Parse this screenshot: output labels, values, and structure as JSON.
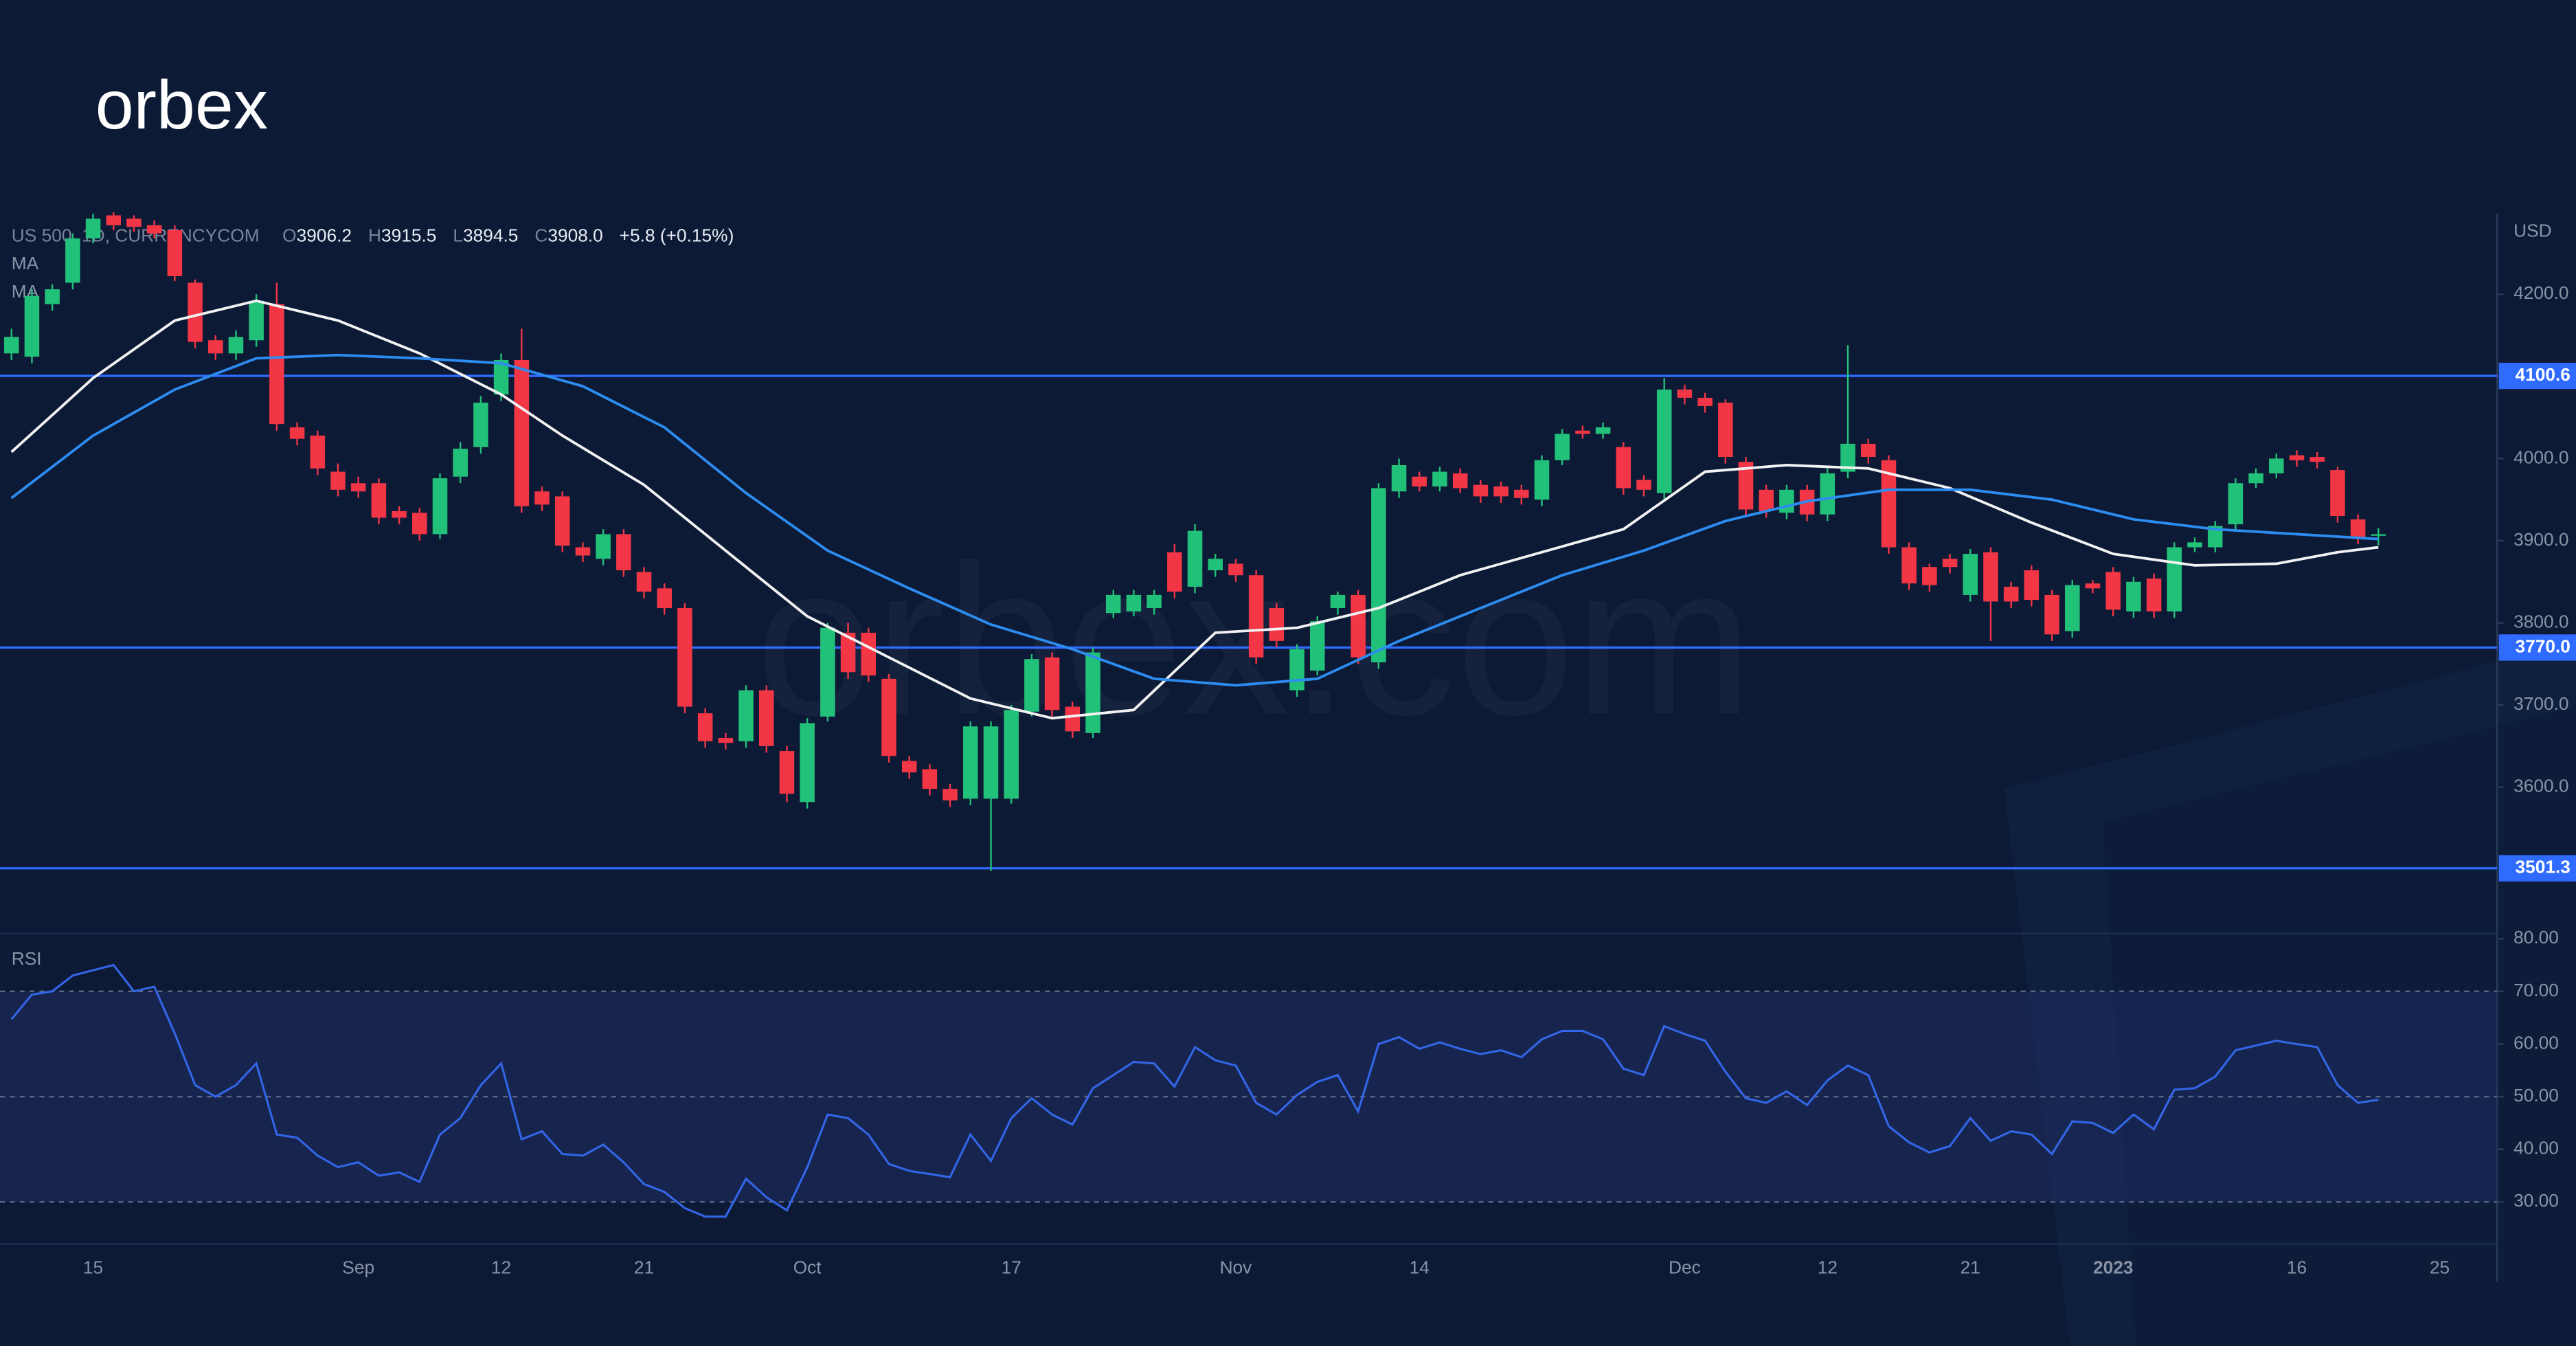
{
  "logo": "orbex",
  "watermark": "orbex.com",
  "chart_data": [
    {
      "type": "candlestick",
      "title": "US 500, 1D, CURRENCYCOM",
      "quote": [
        {
          "key": "O",
          "value": "3906.2"
        },
        {
          "key": "H",
          "value": "3915.5"
        },
        {
          "key": "L",
          "value": "3894.5"
        },
        {
          "key": "C",
          "value": "3908.0"
        }
      ],
      "change": "+5.8 (+0.15%)",
      "unit": "USD",
      "up_color": "#22c17a",
      "down_color": "#f23645",
      "ylim": [
        3422,
        4298
      ],
      "yticks": [
        {
          "value": 4200,
          "label": "4200.0"
        },
        {
          "value": 4100,
          "label": "4100.0"
        },
        {
          "value": 4000,
          "label": "4000.0"
        },
        {
          "value": 3900,
          "label": "3900.0"
        },
        {
          "value": 3800,
          "label": "3800.0"
        },
        {
          "value": 3700,
          "label": "3700.0"
        },
        {
          "value": 3600,
          "label": "3600.0"
        }
      ],
      "grid": false,
      "levels": [
        4100.6,
        {
          "value": 3770,
          "label": "3770.0"
        },
        3501.3
      ],
      "level_color": "#2f6bff",
      "open": [
        4128,
        4124,
        4188,
        4214,
        4268,
        4296,
        4292,
        4284,
        4278,
        4214,
        4144,
        4128,
        4144,
        4188,
        4038,
        4028,
        3984,
        3970,
        3970,
        3936,
        3934,
        3908,
        3978,
        4014,
        4078,
        4120,
        3960,
        3954,
        3892,
        3878,
        3908,
        3862,
        3842,
        3818,
        3690,
        3660,
        3656,
        3718,
        3644,
        3582,
        3686,
        3788,
        3788,
        3732,
        3632,
        3622,
        3598,
        3586,
        3586,
        3586,
        3692,
        3758,
        3698,
        3666,
        3812,
        3814,
        3818,
        3886,
        3844,
        3864,
        3872,
        3858,
        3818,
        3718,
        3742,
        3818,
        3834,
        3752,
        3960,
        3978,
        3966,
        3982,
        3968,
        3966,
        3962,
        3950,
        3998,
        4034,
        4030,
        4014,
        3974,
        3958,
        4084,
        4074,
        4068,
        3996,
        3962,
        3934,
        3962,
        3932,
        3984,
        4018,
        3998,
        3892,
        3868,
        3878,
        3834,
        3886,
        3844,
        3864,
        3834,
        3790,
        3848,
        3862,
        3814,
        3854,
        3814,
        3892,
        3892,
        3920,
        3970,
        3982,
        4004,
        4002,
        3986,
        3926,
        3906.2,
        null,
        null,
        null
      ],
      "high": [
        4158,
        4206,
        4212,
        4274,
        4298,
        4300,
        4296,
        4290,
        4284,
        4218,
        4150,
        4156,
        4200,
        4214,
        4044,
        4034,
        3994,
        3978,
        3976,
        3942,
        3940,
        3982,
        4020,
        4076,
        4128,
        4158,
        3966,
        3960,
        3898,
        3914,
        3914,
        3868,
        3848,
        3824,
        3696,
        3666,
        3724,
        3724,
        3650,
        3684,
        3800,
        3800,
        3794,
        3738,
        3638,
        3628,
        3604,
        3680,
        3680,
        3700,
        3762,
        3764,
        3704,
        3770,
        3840,
        3840,
        3840,
        3896,
        3920,
        3884,
        3878,
        3864,
        3824,
        3774,
        3808,
        3838,
        3840,
        3970,
        4000,
        3984,
        3990,
        3988,
        3974,
        3972,
        3968,
        4004,
        4036,
        4040,
        4044,
        4020,
        3980,
        4098,
        4090,
        4080,
        4072,
        4002,
        3968,
        3968,
        3968,
        3988,
        4138,
        4024,
        4004,
        3898,
        3872,
        3884,
        3890,
        3892,
        3850,
        3870,
        3840,
        3852,
        3852,
        3868,
        3856,
        3860,
        3898,
        3904,
        3924,
        3976,
        3988,
        4006,
        4010,
        4008,
        3990,
        3932,
        3915.5,
        null,
        null,
        null
      ],
      "low": [
        4120,
        4116,
        4180,
        4206,
        4262,
        4278,
        4276,
        4268,
        4216,
        4134,
        4120,
        4120,
        4136,
        4034,
        4016,
        3980,
        3954,
        3952,
        3920,
        3920,
        3900,
        3902,
        3970,
        4006,
        4070,
        3934,
        3936,
        3886,
        3874,
        3870,
        3856,
        3830,
        3810,
        3690,
        3648,
        3646,
        3648,
        3642,
        3582,
        3574,
        3680,
        3732,
        3728,
        3630,
        3610,
        3590,
        3576,
        3578,
        3498,
        3580,
        3686,
        3686,
        3660,
        3660,
        3806,
        3808,
        3810,
        3830,
        3836,
        3856,
        3850,
        3750,
        3770,
        3710,
        3736,
        3810,
        3750,
        3744,
        3952,
        3960,
        3960,
        3958,
        3946,
        3946,
        3944,
        3942,
        3992,
        4024,
        4024,
        3956,
        3954,
        3950,
        4066,
        4056,
        3994,
        3930,
        3928,
        3926,
        3924,
        3924,
        3976,
        3994,
        3884,
        3840,
        3838,
        3860,
        3826,
        3778,
        3818,
        3820,
        3778,
        3782,
        3836,
        3808,
        3806,
        3806,
        3806,
        3886,
        3886,
        3912,
        3964,
        3976,
        3990,
        3988,
        3922,
        3896,
        3894.5,
        null,
        null,
        null
      ],
      "close": [
        4148,
        4198,
        4206,
        4268,
        4292,
        4284,
        4282,
        4274,
        4222,
        4142,
        4128,
        4148,
        4192,
        4042,
        4024,
        3988,
        3962,
        3960,
        3928,
        3928,
        3908,
        3976,
        4012,
        4068,
        4120,
        3942,
        3944,
        3894,
        3882,
        3908,
        3864,
        3838,
        3818,
        3698,
        3656,
        3654,
        3718,
        3650,
        3592,
        3678,
        3794,
        3740,
        3736,
        3638,
        3618,
        3598,
        3584,
        3674,
        3674,
        3694,
        3756,
        3694,
        3668,
        3764,
        3834,
        3834,
        3834,
        3838,
        3912,
        3878,
        3858,
        3758,
        3778,
        3768,
        3802,
        3834,
        3758,
        3964,
        3992,
        3966,
        3984,
        3964,
        3954,
        3954,
        3952,
        3998,
        4030,
        4030,
        4038,
        3964,
        3962,
        4084,
        4074,
        4064,
        4002,
        3938,
        3936,
        3962,
        3932,
        3982,
        4018,
        4002,
        3892,
        3848,
        3846,
        3868,
        3884,
        3826,
        3826,
        3828,
        3786,
        3846,
        3842,
        3816,
        3850,
        3814,
        3892,
        3898,
        3918,
        3970,
        3982,
        4000,
        3998,
        3996,
        3930,
        3904,
        3908.0,
        null,
        null,
        null
      ],
      "series": [
        {
          "name": "MA",
          "color": "#f2f2f2",
          "x": [
            0,
            4,
            8,
            12,
            16,
            20,
            24,
            27,
            31,
            35,
            39,
            43,
            47,
            51,
            55,
            59,
            63,
            67,
            71,
            75,
            79,
            83,
            87,
            91,
            95,
            99,
            103,
            107,
            111,
            114,
            116
          ],
          "values": [
            4008,
            4098,
            4168,
            4192,
            4168,
            4128,
            4078,
            4028,
            3968,
            3888,
            3808,
            3758,
            3708,
            3684,
            3694,
            3788,
            3794,
            3818,
            3858,
            3886,
            3914,
            3984,
            3992,
            3988,
            3964,
            3922,
            3884,
            3870,
            3872,
            3886,
            3892
          ]
        },
        {
          "name": "MA",
          "color": "#2d8cf0",
          "x": [
            0,
            4,
            8,
            12,
            16,
            20,
            24,
            28,
            32,
            36,
            40,
            44,
            48,
            52,
            56,
            60,
            64,
            68,
            72,
            76,
            80,
            84,
            88,
            92,
            96,
            100,
            104,
            108,
            112,
            116
          ],
          "values": [
            3952,
            4028,
            4084,
            4122,
            4126,
            4122,
            4116,
            4088,
            4038,
            3958,
            3888,
            3842,
            3798,
            3768,
            3732,
            3724,
            3732,
            3778,
            3818,
            3858,
            3888,
            3924,
            3948,
            3962,
            3962,
            3950,
            3926,
            3914,
            3908,
            3902
          ]
        }
      ]
    },
    {
      "type": "line",
      "title": "RSI",
      "color": "#3366e6",
      "band_color": "#1f2d63",
      "ylim": [
        22,
        81
      ],
      "yticks": [
        {
          "value": 80,
          "label": "80.00"
        },
        {
          "value": 70,
          "label": "70.00"
        },
        {
          "value": 60,
          "label": "60.00"
        },
        {
          "value": 50,
          "label": "50.00"
        },
        {
          "value": 40,
          "label": "40.00"
        },
        {
          "value": 30,
          "label": "30.00"
        }
      ],
      "band": [
        30,
        70
      ],
      "midline": 50,
      "categories": [
        null,
        null,
        null,
        null,
        "15",
        null,
        null,
        null,
        null,
        null,
        null,
        null,
        null,
        null,
        null,
        null,
        null,
        "Sep",
        null,
        null,
        null,
        null,
        null,
        null,
        "12",
        null,
        null,
        null,
        null,
        null,
        null,
        "21",
        null,
        null,
        null,
        null,
        null,
        null,
        null,
        "Oct",
        null,
        null,
        null,
        null,
        null,
        null,
        null,
        null,
        null,
        "17",
        null,
        null,
        null,
        null,
        null,
        null,
        null,
        null,
        null,
        null,
        "Nov",
        null,
        null,
        null,
        null,
        null,
        null,
        null,
        null,
        "14",
        null,
        null,
        null,
        null,
        null,
        null,
        null,
        null,
        null,
        null,
        null,
        null,
        "Dec",
        null,
        null,
        null,
        null,
        null,
        null,
        "12",
        null,
        null,
        null,
        null,
        null,
        null,
        "21",
        null,
        null,
        null,
        null,
        null,
        null,
        "2023",
        null,
        null,
        null,
        null,
        null,
        null,
        null,
        null,
        "16",
        null,
        null,
        null,
        null,
        null,
        null,
        "25"
      ],
      "values": [
        64.7,
        69.4,
        70,
        73,
        74,
        75,
        70,
        70.9,
        62,
        52.2,
        50,
        52.2,
        56.3,
        42.8,
        42.2,
        38.8,
        36.6,
        37.5,
        35,
        35.6,
        33.8,
        42.8,
        45.9,
        52.2,
        56.3,
        41.9,
        43.4,
        39.1,
        38.8,
        40.9,
        37.5,
        33.4,
        31.9,
        28.8,
        27.2,
        27.2,
        34.4,
        30.9,
        28.4,
        36.6,
        46.6,
        45.9,
        42.8,
        37.2,
        35.9,
        35.3,
        34.7,
        42.8,
        37.8,
        45.9,
        49.7,
        46.6,
        44.7,
        51.6,
        54.1,
        56.6,
        56.3,
        51.9,
        59.4,
        56.9,
        55.9,
        48.8,
        46.6,
        50.3,
        52.8,
        54.1,
        47.2,
        60,
        61.3,
        59.1,
        60.3,
        59.1,
        58.1,
        58.8,
        57.5,
        60.9,
        62.5,
        62.5,
        60.9,
        55.3,
        54.1,
        63.4,
        61.9,
        60.6,
        54.7,
        49.7,
        48.8,
        51,
        48.4,
        53.1,
        55.9,
        54.1,
        44.4,
        41.3,
        39.4,
        40.6,
        45.9,
        41.6,
        43.4,
        42.8,
        39.1,
        45.3,
        45,
        43.1,
        46.6,
        43.8,
        51.3,
        51.6,
        53.8,
        58.8,
        59.7,
        60.6,
        60,
        59.4,
        52.2,
        48.8,
        49.4,
        null,
        null,
        null
      ]
    }
  ]
}
